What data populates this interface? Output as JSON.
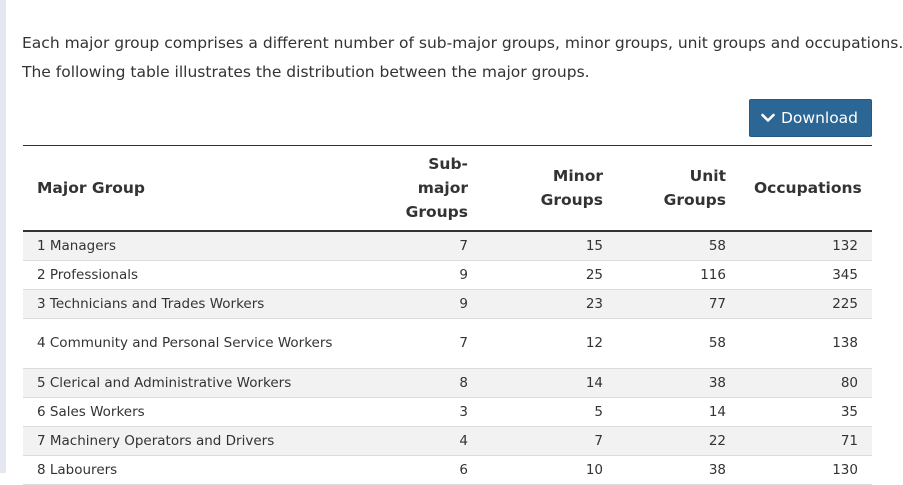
{
  "intro": {
    "line1": "Each major group comprises a different number of sub-major groups, minor groups, unit groups and occupations.",
    "line2": "The following table illustrates the distribution between the major groups."
  },
  "download": {
    "label": "Download",
    "icon": "chevron-down-icon"
  },
  "table": {
    "headers": {
      "major_group": "Major Group",
      "sub_major_1": "Sub-major",
      "sub_major_2": "Groups",
      "minor_1": "Minor",
      "minor_2": "Groups",
      "unit_1": "Unit",
      "unit_2": "Groups",
      "occupations": "Occupations"
    },
    "rows": [
      {
        "group": "1 Managers",
        "sub_major": "7",
        "minor": "15",
        "unit": "58",
        "occupations": "132"
      },
      {
        "group": "2 Professionals",
        "sub_major": "9",
        "minor": "25",
        "unit": "116",
        "occupations": "345"
      },
      {
        "group": "3 Technicians and Trades Workers",
        "sub_major": "9",
        "minor": "23",
        "unit": "77",
        "occupations": "225"
      },
      {
        "group": "4 Community and Personal Service Workers",
        "sub_major": "7",
        "minor": "12",
        "unit": "58",
        "occupations": "138"
      },
      {
        "group": "5 Clerical and Administrative Workers",
        "sub_major": "8",
        "minor": "14",
        "unit": "38",
        "occupations": "80"
      },
      {
        "group": "6 Sales Workers",
        "sub_major": "3",
        "minor": "5",
        "unit": "14",
        "occupations": "35"
      },
      {
        "group": "7 Machinery Operators and Drivers",
        "sub_major": "4",
        "minor": "7",
        "unit": "22",
        "occupations": "71"
      },
      {
        "group": "8 Labourers",
        "sub_major": "6",
        "minor": "10",
        "unit": "38",
        "occupations": "130"
      }
    ]
  },
  "colors": {
    "button_bg": "#2c6694",
    "button_text": "#ffffff",
    "stripe": "#f2f2f2",
    "text": "#333333"
  }
}
